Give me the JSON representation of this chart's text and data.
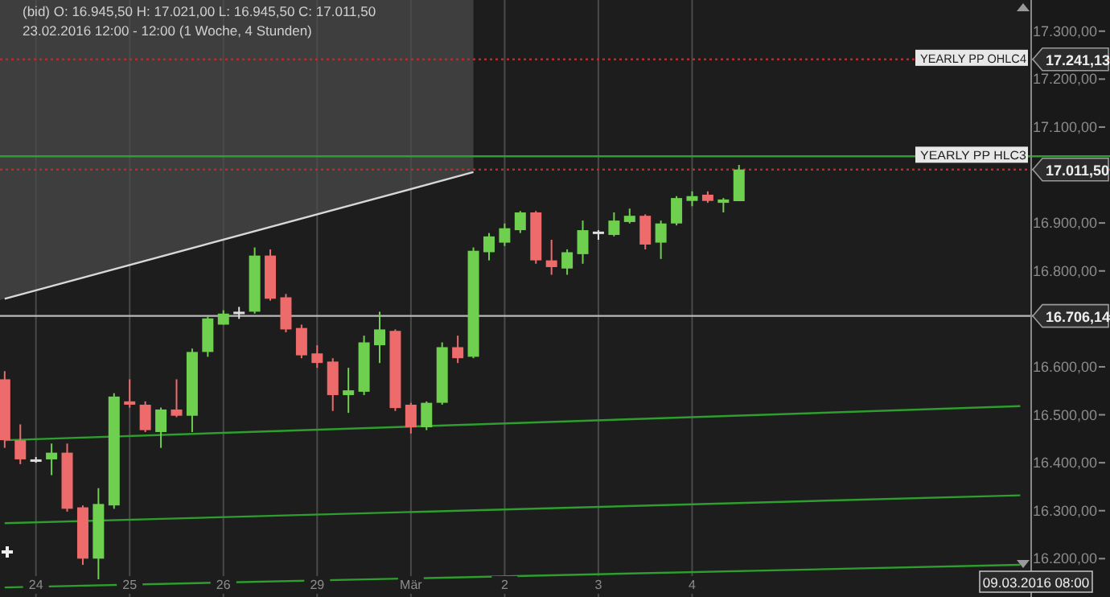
{
  "chart_data": {
    "type": "candlestick",
    "title": "(bid) O: 16.945,50 H: 17.021,00 L: 16.945,50 C: 17.011,50",
    "subtitle": "23.02.2016 12:00 - 12:00 (1 Woche, 4 Stunden)",
    "categories": [
      null,
      null,
      "24",
      null,
      null,
      null,
      null,
      null,
      "25",
      null,
      null,
      null,
      null,
      null,
      "26",
      null,
      null,
      null,
      null,
      null,
      "29",
      null,
      null,
      null,
      null,
      null,
      "Mär",
      null,
      null,
      null,
      null,
      null,
      "2",
      null,
      null,
      null,
      null,
      null,
      "3",
      null,
      null,
      null,
      null,
      null,
      "4",
      null,
      null,
      null,
      null,
      null,
      null,
      null,
      null,
      null,
      null,
      null,
      null,
      null,
      null,
      null,
      null,
      null,
      null,
      null,
      null,
      null
    ],
    "ohlc": [
      [
        16574,
        16591,
        16431,
        16447
      ],
      [
        16447,
        16480,
        16397,
        16407
      ],
      [
        16407,
        16412,
        16400,
        16405
      ],
      [
        16407,
        16440,
        16374,
        16421
      ],
      [
        16421,
        16440,
        16298,
        16304
      ],
      [
        16307,
        16311,
        16187,
        16200
      ],
      [
        16200,
        16347,
        16157,
        16314
      ],
      [
        16311,
        16545,
        16304,
        16538
      ],
      [
        16528,
        16574,
        16515,
        16521
      ],
      [
        16521,
        16528,
        16464,
        16468
      ],
      [
        16464,
        16515,
        16431,
        16511
      ],
      [
        16511,
        16574,
        16495,
        16498
      ],
      [
        16498,
        16638,
        16464,
        16631
      ],
      [
        16631,
        16705,
        16621,
        16701
      ],
      [
        16688,
        16718,
        16688,
        16711
      ],
      [
        16715,
        16725,
        16700,
        16712
      ],
      [
        16715,
        16849,
        16711,
        16832
      ],
      [
        16832,
        16845,
        16738,
        16742
      ],
      [
        16745,
        16752,
        16672,
        16678
      ],
      [
        16681,
        16688,
        16618,
        16624
      ],
      [
        16628,
        16645,
        16598,
        16608
      ],
      [
        16611,
        16618,
        16508,
        16541
      ],
      [
        16541,
        16598,
        16504,
        16551
      ],
      [
        16548,
        16665,
        16541,
        16651
      ],
      [
        16645,
        16715,
        16608,
        16678
      ],
      [
        16675,
        16678,
        16508,
        16514
      ],
      [
        16521,
        16525,
        16461,
        16474
      ],
      [
        16474,
        16528,
        16468,
        16525
      ],
      [
        16525,
        16651,
        16521,
        16641
      ],
      [
        16641,
        16665,
        16608,
        16618
      ],
      [
        16621,
        16849,
        16618,
        16842
      ],
      [
        16839,
        16879,
        16822,
        16872
      ],
      [
        16859,
        16899,
        16852,
        16889
      ],
      [
        16885,
        16925,
        16879,
        16922
      ],
      [
        16922,
        16925,
        16815,
        16822
      ],
      [
        16822,
        16865,
        16792,
        16808
      ],
      [
        16805,
        16845,
        16792,
        16839
      ],
      [
        16835,
        16905,
        16815,
        16885
      ],
      [
        16879,
        16885,
        16865,
        16882
      ],
      [
        16875,
        16922,
        16872,
        16905
      ],
      [
        16902,
        16930,
        16899,
        16915
      ],
      [
        16915,
        16918,
        16845,
        16855
      ],
      [
        16859,
        16905,
        16825,
        16899
      ],
      [
        16899,
        16956,
        16895,
        16952
      ],
      [
        16946,
        16966,
        16935,
        16956
      ],
      [
        16959,
        16966,
        16942,
        16946
      ],
      [
        16942,
        16952,
        16922,
        16949
      ],
      [
        16945.5,
        17021,
        16945.5,
        17011.5
      ],
      null,
      null,
      null,
      null,
      null,
      null,
      null,
      null,
      null,
      null,
      null,
      null,
      null,
      null,
      null,
      null,
      null,
      null
    ],
    "colors": [
      "#ee6b6b",
      "#ee6b6b",
      "#dddddd",
      "#6fcf4f",
      "#ee6b6b",
      "#ee6b6b",
      "#6fcf4f",
      "#6fcf4f",
      "#ee6b6b",
      "#ee6b6b",
      "#6fcf4f",
      "#ee6b6b",
      "#6fcf4f",
      "#6fcf4f",
      "#6fcf4f",
      "#dddddd",
      "#6fcf4f",
      "#ee6b6b",
      "#ee6b6b",
      "#ee6b6b",
      "#ee6b6b",
      "#ee6b6b",
      "#6fcf4f",
      "#6fcf4f",
      "#6fcf4f",
      "#ee6b6b",
      "#ee6b6b",
      "#6fcf4f",
      "#6fcf4f",
      "#ee6b6b",
      "#6fcf4f",
      "#6fcf4f",
      "#6fcf4f",
      "#6fcf4f",
      "#ee6b6b",
      "#ee6b6b",
      "#6fcf4f",
      "#6fcf4f",
      "#dddddd",
      "#6fcf4f",
      "#6fcf4f",
      "#ee6b6b",
      "#6fcf4f",
      "#6fcf4f",
      "#6fcf4f",
      "#ee6b6b",
      "#6fcf4f",
      "#6fcf4f",
      null,
      null,
      null,
      null,
      null,
      null,
      null,
      null,
      null,
      null,
      null,
      null,
      null,
      null,
      null,
      null,
      null,
      null
    ],
    "series": [
      {
        "type": "line",
        "color": "#d8d8d8",
        "values": [
          16742,
          null,
          null,
          null,
          null,
          null,
          null,
          null,
          null,
          null,
          null,
          null,
          null,
          null,
          null,
          null,
          null,
          null,
          null,
          null,
          null,
          null,
          null,
          null,
          null,
          null,
          null,
          null,
          null,
          null,
          17006,
          null,
          null,
          null,
          null,
          null,
          null,
          null,
          null,
          null,
          null,
          null,
          null,
          null,
          null,
          null,
          null,
          null,
          null,
          null,
          null,
          null,
          null,
          null,
          null,
          null,
          null,
          null,
          null,
          null,
          null,
          null,
          null,
          null,
          null,
          null
        ]
      },
      {
        "type": "line",
        "color": "#2e9e2e",
        "values": [
          16447,
          null,
          null,
          null,
          null,
          null,
          null,
          null,
          null,
          null,
          null,
          null,
          null,
          null,
          null,
          null,
          null,
          null,
          null,
          null,
          null,
          null,
          null,
          null,
          null,
          null,
          null,
          null,
          null,
          null,
          null,
          null,
          null,
          null,
          null,
          null,
          null,
          null,
          null,
          null,
          null,
          null,
          null,
          null,
          null,
          null,
          null,
          null,
          null,
          null,
          null,
          null,
          null,
          null,
          null,
          null,
          null,
          null,
          null,
          null,
          null,
          null,
          null,
          null,
          null,
          16518
        ]
      },
      {
        "type": "line",
        "color": "#2e9e2e",
        "values": [
          16274,
          null,
          null,
          null,
          null,
          null,
          null,
          null,
          null,
          null,
          null,
          null,
          null,
          null,
          null,
          null,
          null,
          null,
          null,
          null,
          null,
          null,
          null,
          null,
          null,
          null,
          null,
          null,
          null,
          null,
          null,
          null,
          null,
          null,
          null,
          null,
          null,
          null,
          null,
          null,
          null,
          null,
          null,
          null,
          null,
          null,
          null,
          null,
          null,
          null,
          null,
          null,
          null,
          null,
          null,
          null,
          null,
          null,
          null,
          null,
          null,
          null,
          null,
          null,
          null,
          16332
        ]
      },
      {
        "type": "line",
        "color": "#2e9e2e",
        "values": [
          16140,
          null,
          null,
          null,
          null,
          null,
          null,
          null,
          null,
          null,
          null,
          null,
          null,
          null,
          null,
          null,
          null,
          null,
          null,
          null,
          null,
          null,
          null,
          null,
          null,
          null,
          null,
          null,
          null,
          null,
          null,
          null,
          null,
          null,
          null,
          null,
          null,
          null,
          null,
          null,
          null,
          null,
          null,
          null,
          null,
          null,
          null,
          null,
          null,
          null,
          null,
          null,
          null,
          null,
          null,
          null,
          null,
          null,
          null,
          null,
          null,
          null,
          null,
          null,
          null,
          16187
        ]
      }
    ],
    "ylim": [
      16120,
      17365
    ],
    "yticks": [
      {
        "value": 16200,
        "label": "16.200,00"
      },
      {
        "value": 16300,
        "label": "16.300,00"
      },
      {
        "value": 16400,
        "label": "16.400,00"
      },
      {
        "value": 16500,
        "label": "16.500,00"
      },
      {
        "value": 16600,
        "label": "16.600,00"
      },
      {
        "value": 16800,
        "label": "16.800,00"
      },
      {
        "value": 16900,
        "label": "16.900,00"
      },
      {
        "value": 17100,
        "label": "17.100,00"
      },
      {
        "value": 17200,
        "label": "17.200,00"
      },
      {
        "value": 17300,
        "label": "17.300,00"
      }
    ],
    "ref_lines": [
      {
        "axis": "y",
        "value": 17241.13,
        "label": "17.241,13",
        "color": "#b03030",
        "line_style": "dotted"
      },
      {
        "axis": "y",
        "value": 17039,
        "label": null,
        "color": "#2e9e2e"
      },
      {
        "axis": "y",
        "value": 17011.5,
        "label": "17.011,50",
        "color": "#b03030",
        "line_style": "dotted"
      },
      {
        "axis": "y",
        "value": 16706.14,
        "label": "16.706,14",
        "color": "#b8b8b8"
      }
    ],
    "annotations": [
      {
        "text": "YEARLY PP OHLC4",
        "y": 17241.13
      },
      {
        "text": "YEARLY PP HLC3",
        "y": 17039
      },
      "09.03.2016 08:00"
    ],
    "grid": "x",
    "line_style": "solid"
  }
}
